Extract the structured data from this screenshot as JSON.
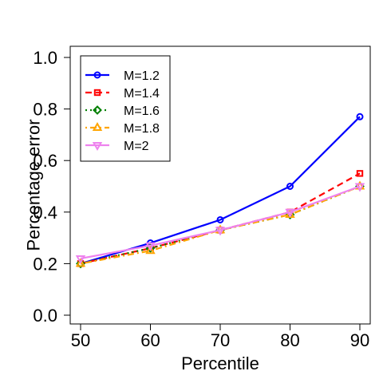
{
  "chart_data": {
    "type": "line",
    "title": "",
    "xlabel": "Percentile",
    "ylabel": "Percentage error",
    "x": [
      50,
      60,
      70,
      80,
      90
    ],
    "xlim": [
      50,
      90
    ],
    "ylim": [
      0.0,
      1.0
    ],
    "x_ticks": [
      "50",
      "60",
      "70",
      "80",
      "90"
    ],
    "y_ticks": [
      "0.0",
      "0.2",
      "0.4",
      "0.6",
      "0.8",
      "1.0"
    ],
    "grid": false,
    "legend_position": "top-left",
    "series": [
      {
        "name": "M=1.2",
        "values": [
          0.2,
          0.28,
          0.37,
          0.5,
          0.77
        ],
        "color": "#0000ff",
        "dash": "solid",
        "marker": "circle"
      },
      {
        "name": "M=1.4",
        "values": [
          0.2,
          0.26,
          0.33,
          0.4,
          0.55
        ],
        "color": "#ff0000",
        "dash": "dashed",
        "marker": "square"
      },
      {
        "name": "M=1.6",
        "values": [
          0.2,
          0.26,
          0.33,
          0.39,
          0.5
        ],
        "color": "#008000",
        "dash": "dotted",
        "marker": "diamond"
      },
      {
        "name": "M=1.8",
        "values": [
          0.2,
          0.25,
          0.33,
          0.39,
          0.5
        ],
        "color": "#ffa500",
        "dash": "dotdash",
        "marker": "triangle-up"
      },
      {
        "name": "M=2",
        "values": [
          0.22,
          0.27,
          0.33,
          0.4,
          0.5
        ],
        "color": "#ee82ee",
        "dash": "solid",
        "marker": "triangle-down"
      }
    ]
  }
}
